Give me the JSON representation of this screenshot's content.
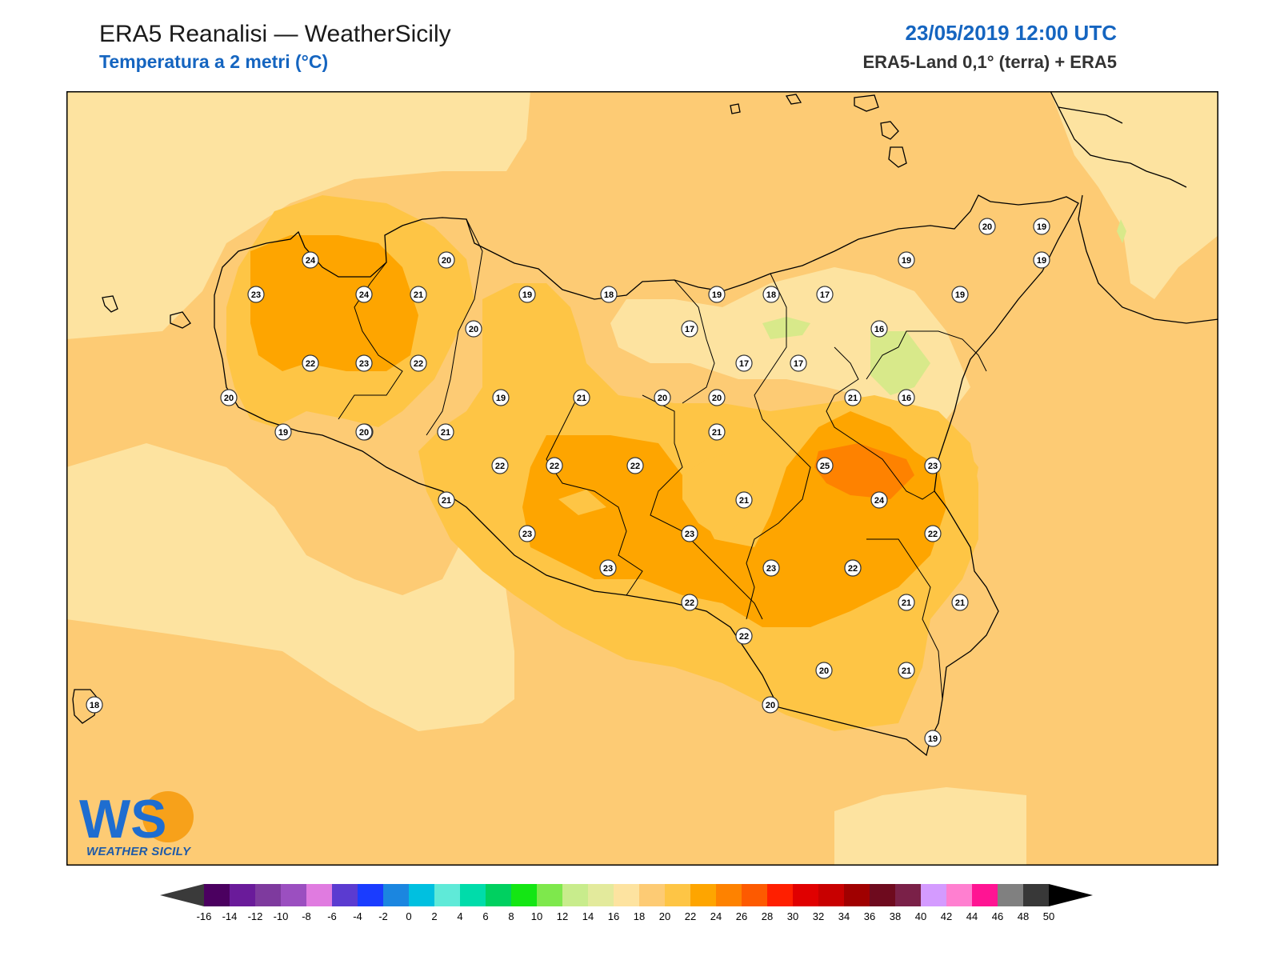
{
  "header": {
    "title": "ERA5 Reanalisi — WeatherSicily",
    "subtitle": "Temperatura a 2 metri (°C)",
    "datetime": "23/05/2019 12:00 UTC",
    "source": "ERA5-Land 0,1° (terra) + ERA5"
  },
  "logo": {
    "mark": "WS",
    "name": "WEATHER SICILY"
  },
  "colors": {
    "t16": "#fde3a0",
    "t18": "#fdcb74",
    "t20": "#fec545",
    "t22": "#fea500",
    "t24": "#fe8200",
    "t14": "#d8e98a",
    "coast": "#000000"
  },
  "station_values": [
    {
      "value": "24"
    },
    {
      "value": "20"
    },
    {
      "value": "23"
    },
    {
      "value": "24"
    },
    {
      "value": "21"
    },
    {
      "value": "20"
    },
    {
      "value": "22"
    },
    {
      "value": "23"
    },
    {
      "value": "22"
    },
    {
      "value": "20"
    },
    {
      "value": "19"
    },
    {
      "value": "20"
    },
    {
      "value": "21"
    },
    {
      "value": "19"
    },
    {
      "value": "19"
    },
    {
      "value": "18"
    },
    {
      "value": "17"
    },
    {
      "value": "18"
    },
    {
      "value": "19"
    },
    {
      "value": "20"
    },
    {
      "value": "20"
    },
    {
      "value": "19"
    },
    {
      "value": "19"
    },
    {
      "value": "17"
    },
    {
      "value": "16"
    },
    {
      "value": "17"
    },
    {
      "value": "17"
    },
    {
      "value": "19"
    },
    {
      "value": "19"
    },
    {
      "value": "21"
    },
    {
      "value": "20"
    },
    {
      "value": "21"
    },
    {
      "value": "16"
    },
    {
      "value": "20"
    },
    {
      "value": "21"
    },
    {
      "value": "22"
    },
    {
      "value": "22"
    },
    {
      "value": "23"
    },
    {
      "value": "22"
    },
    {
      "value": "25"
    },
    {
      "value": "23"
    },
    {
      "value": "21"
    },
    {
      "value": "21"
    },
    {
      "value": "24"
    },
    {
      "value": "22"
    },
    {
      "value": "23"
    },
    {
      "value": "22"
    },
    {
      "value": "23"
    },
    {
      "value": "23"
    },
    {
      "value": "22"
    },
    {
      "value": "21"
    },
    {
      "value": "21"
    },
    {
      "value": "23"
    },
    {
      "value": "22"
    },
    {
      "value": "20"
    },
    {
      "value": "21"
    },
    {
      "value": "20"
    },
    {
      "value": "19"
    },
    {
      "value": "18"
    }
  ],
  "colorbar": {
    "unit": "°C",
    "ticks": [
      "-16",
      "-14",
      "-12",
      "-10",
      "-8",
      "-6",
      "-4",
      "-2",
      "0",
      "2",
      "4",
      "6",
      "8",
      "10",
      "12",
      "14",
      "16",
      "18",
      "20",
      "22",
      "24",
      "26",
      "28",
      "30",
      "32",
      "34",
      "36",
      "38",
      "40",
      "42",
      "44",
      "46",
      "48",
      "50"
    ],
    "colors": [
      "#4b0060",
      "#6a1b9a",
      "#7e3a9e",
      "#9b4fc0",
      "#e07be0",
      "#5b3bd0",
      "#1a3cff",
      "#1b86e0",
      "#00c0e0",
      "#5fead8",
      "#00dcaa",
      "#00d060",
      "#14e614",
      "#7ee84c",
      "#c8ec8c",
      "#e3ea9c",
      "#fde3a0",
      "#fdcb74",
      "#fec545",
      "#fea500",
      "#fe8200",
      "#fd5a00",
      "#ff1f00",
      "#e00000",
      "#c80000",
      "#a00000",
      "#6e0a1e",
      "#7a2048",
      "#d49bff",
      "#ff7fd0",
      "#ff1493",
      "#808080",
      "#383838"
    ]
  }
}
